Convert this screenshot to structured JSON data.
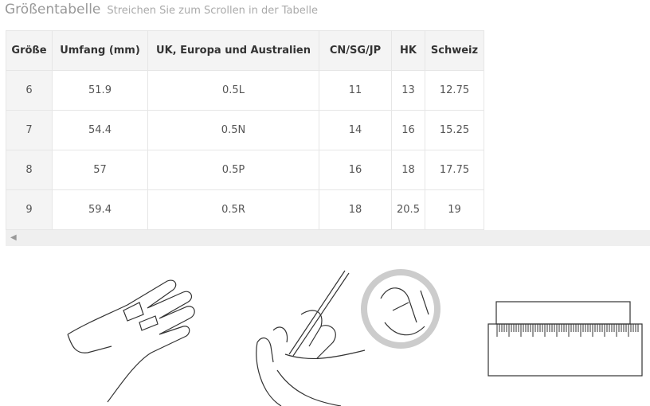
{
  "title": "Größentabelle",
  "subtitle": "Streichen Sie zum Scrollen in der Tabelle",
  "table": {
    "headers": [
      "Größe",
      "Umfang (mm)",
      "UK, Europa und Australien",
      "CN/SG/JP",
      "HK",
      "Schweiz"
    ],
    "rows": [
      [
        "6",
        "51.9",
        "0.5L",
        "11",
        "13",
        "12.75"
      ],
      [
        "7",
        "54.4",
        "0.5N",
        "14",
        "16",
        "15.25"
      ],
      [
        "8",
        "57",
        "0.5P",
        "16",
        "18",
        "17.75"
      ],
      [
        "9",
        "59.4",
        "0.5R",
        "18",
        "20.5",
        "19"
      ]
    ]
  },
  "scrollbar": {
    "left_arrow_icon": "chevron-left-icon"
  }
}
